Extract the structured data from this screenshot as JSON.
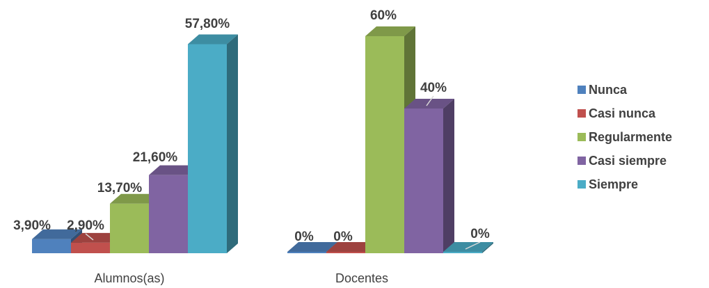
{
  "chart_data": {
    "type": "bar",
    "categories": [
      "Alumnos(as)",
      "Docentes"
    ],
    "series": [
      {
        "name": "Nunca",
        "color": "#4F81BD",
        "values": [
          3.9,
          0
        ],
        "labels": [
          "3,90%",
          "0%"
        ]
      },
      {
        "name": "Casi nunca",
        "color": "#C0504D",
        "values": [
          2.9,
          0
        ],
        "labels": [
          "2,90%",
          "0%"
        ]
      },
      {
        "name": "Regularmente",
        "color": "#9BBB59",
        "values": [
          13.7,
          60
        ],
        "labels": [
          "13,70%",
          "60%"
        ]
      },
      {
        "name": "Casi siempre",
        "color": "#8064A2",
        "values": [
          21.6,
          40
        ],
        "labels": [
          "21,60%",
          "40%"
        ]
      },
      {
        "name": "Siempre",
        "color": "#4BACC6",
        "values": [
          57.8,
          0
        ],
        "labels": [
          "57,80%",
          "0%"
        ]
      }
    ],
    "ylim": [
      0,
      60
    ],
    "grid": false,
    "legend_position": "right",
    "three_d": true
  }
}
